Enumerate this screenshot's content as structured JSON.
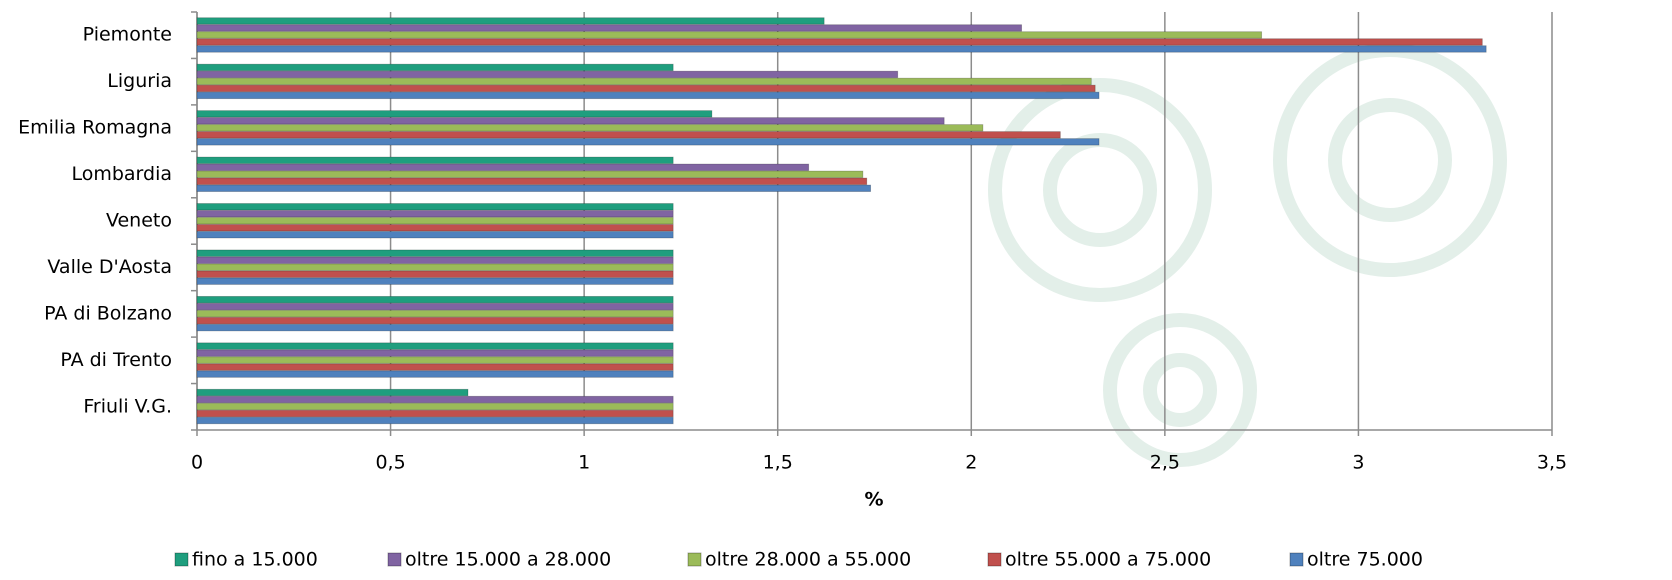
{
  "chart_data": {
    "type": "bar",
    "orientation": "horizontal",
    "categories": [
      "Piemonte",
      "Liguria",
      "Emilia Romagna",
      "Lombardia",
      "Veneto",
      "Valle D'Aosta",
      "PA di Bolzano",
      "PA di Trento",
      "Friuli V.G."
    ],
    "series": [
      {
        "name": "fino a 15.000",
        "color": "#1f9e7e",
        "values": [
          1.62,
          1.23,
          1.33,
          1.23,
          1.23,
          1.23,
          1.23,
          1.23,
          0.7
        ]
      },
      {
        "name": "oltre 15.000 a 28.000",
        "color": "#8064a2",
        "values": [
          2.13,
          1.81,
          1.93,
          1.58,
          1.23,
          1.23,
          1.23,
          1.23,
          1.23
        ]
      },
      {
        "name": "oltre 28.000 a 55.000",
        "color": "#9bbb59",
        "values": [
          2.75,
          2.31,
          2.03,
          1.72,
          1.23,
          1.23,
          1.23,
          1.23,
          1.23
        ]
      },
      {
        "name": "oltre 55.000 a 75.000",
        "color": "#c0504d",
        "values": [
          3.32,
          2.32,
          2.23,
          1.73,
          1.23,
          1.23,
          1.23,
          1.23,
          1.23
        ]
      },
      {
        "name": "oltre 75.000",
        "color": "#4f81bd",
        "values": [
          3.33,
          2.33,
          2.33,
          1.74,
          1.23,
          1.23,
          1.23,
          1.23,
          1.23
        ]
      }
    ],
    "xlabel": "%",
    "xlim": [
      0,
      3.5
    ],
    "xticks": [
      0,
      {
        "value": 0.5,
        "label": "0,5"
      },
      1,
      {
        "value": 1.5,
        "label": "1,5"
      },
      2,
      {
        "value": 2.5,
        "label": "2,5"
      },
      3,
      {
        "value": 3.5,
        "label": "3,5"
      }
    ],
    "grid": true,
    "legend": "bottom"
  }
}
